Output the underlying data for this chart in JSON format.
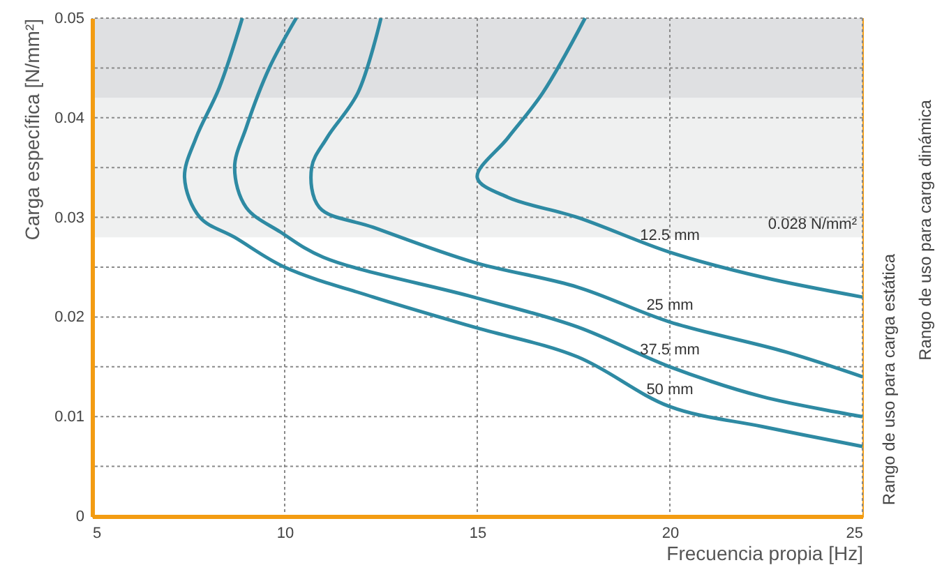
{
  "chart_data": {
    "type": "line",
    "xlabel": "Frecuencia propia [Hz]",
    "ylabel": "Carga específica [N/mm²]",
    "xlim": [
      5,
      25
    ],
    "xticks": [
      5,
      10,
      15,
      20,
      25
    ],
    "ylim": [
      0,
      0.05
    ],
    "yticks": [
      0,
      {
        "value": 0.005,
        "label": null
      },
      0.01,
      {
        "value": 0.015,
        "label": null
      },
      0.02,
      {
        "value": 0.025,
        "label": null
      },
      0.03,
      {
        "value": 0.035,
        "label": null
      },
      0.04,
      {
        "value": 0.045,
        "label": null
      },
      0.05
    ],
    "grid": true,
    "marker": "none",
    "line_style": "solid",
    "series": [
      {
        "name": "12.5 mm",
        "color": "#2e8aa3",
        "x": [
          17.8,
          16.7,
          15.8,
          15,
          15.8,
          17.6,
          20,
          22.4,
          25
        ],
        "values": [
          0.05,
          0.0425,
          0.038,
          0.034,
          0.032,
          0.03,
          0.0265,
          0.024,
          0.022
        ]
      },
      {
        "name": "25 mm",
        "color": "#2e8aa3",
        "x": [
          12.5,
          11.9,
          11.1,
          10.7,
          10.9,
          12.3,
          14.9,
          17.6,
          20,
          23,
          25
        ],
        "values": [
          0.05,
          0.0425,
          0.038,
          0.035,
          0.031,
          0.029,
          0.0255,
          0.023,
          0.0195,
          0.0165,
          0.014
        ]
      },
      {
        "name": "37.5 mm",
        "color": "#2e8aa3",
        "x": [
          10.3,
          9.6,
          9,
          8.7,
          9,
          9.9,
          11,
          14.9,
          17.6,
          20,
          22.4,
          25
        ],
        "values": [
          0.05,
          0.045,
          0.039,
          0.035,
          0.031,
          0.0285,
          0.026,
          0.022,
          0.019,
          0.015,
          0.012,
          0.01
        ]
      },
      {
        "name": "50 mm",
        "color": "#2e8aa3",
        "x": [
          8.9,
          8.3,
          7.7,
          7.4,
          7.8,
          8.7,
          10,
          12.3,
          14.9,
          17.6,
          20,
          22.4,
          25
        ],
        "values": [
          0.05,
          0.043,
          0.038,
          0.034,
          0.03,
          0.028,
          0.025,
          0.022,
          0.019,
          0.016,
          0.011,
          0.009,
          0.007
        ]
      }
    ],
    "bands": [
      {
        "axis": "y",
        "from": 0.028,
        "to": 0.042,
        "color": "#eff0f0",
        "label": "0.028 N/mm²"
      },
      {
        "axis": "y",
        "from": 0.042,
        "to": 0.05,
        "color": "#dfe0e2"
      }
    ],
    "annotations": [
      "Rango de uso para carga estática",
      "Rango de uso para carga dinámica"
    ]
  }
}
